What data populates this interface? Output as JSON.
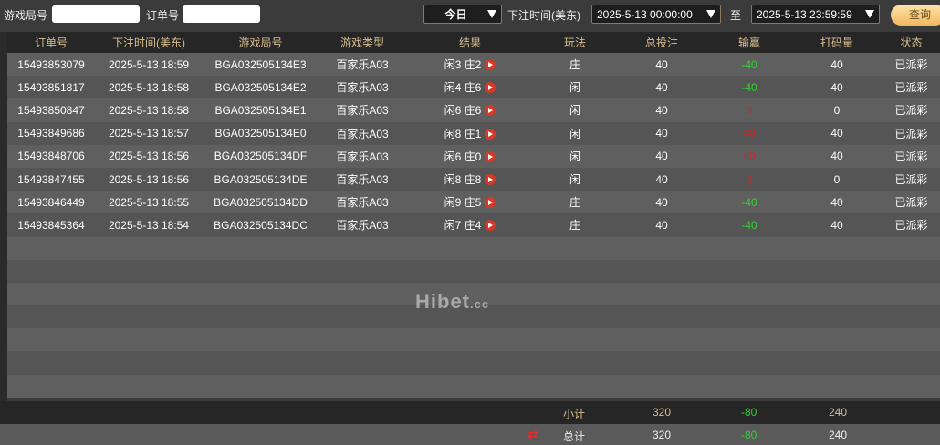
{
  "filters": {
    "game_round_label": "游戏局号",
    "game_round_value": "",
    "order_label": "订单号",
    "order_value": "",
    "period": "今日",
    "time_label": "下注时间(美东)",
    "start": "2025-5-13 00:00:00",
    "to_label": "至",
    "end": "2025-5-13 23:59:59",
    "query": "查询"
  },
  "columns": [
    "订单号",
    "下注时间(美东)",
    "游戏局号",
    "游戏类型",
    "结果",
    "玩法",
    "总投注",
    "输赢",
    "打码量",
    "状态"
  ],
  "rows": [
    {
      "order": "15493853079",
      "time": "2025-5-13 18:59",
      "round": "BGA032505134E3",
      "type": "百家乐A03",
      "result": "闲3 庄2",
      "play": "庄",
      "bet": "40",
      "win": "-40",
      "valid": "40",
      "status": "已派彩"
    },
    {
      "order": "15493851817",
      "time": "2025-5-13 18:58",
      "round": "BGA032505134E2",
      "type": "百家乐A03",
      "result": "闲4 庄6",
      "play": "闲",
      "bet": "40",
      "win": "-40",
      "valid": "40",
      "status": "已派彩"
    },
    {
      "order": "15493850847",
      "time": "2025-5-13 18:58",
      "round": "BGA032505134E1",
      "type": "百家乐A03",
      "result": "闲6 庄6",
      "play": "闲",
      "bet": "40",
      "win": "0",
      "valid": "0",
      "status": "已派彩"
    },
    {
      "order": "15493849686",
      "time": "2025-5-13 18:57",
      "round": "BGA032505134E0",
      "type": "百家乐A03",
      "result": "闲8 庄1",
      "play": "闲",
      "bet": "40",
      "win": "40",
      "valid": "40",
      "status": "已派彩"
    },
    {
      "order": "15493848706",
      "time": "2025-5-13 18:56",
      "round": "BGA032505134DF",
      "type": "百家乐A03",
      "result": "闲6 庄0",
      "play": "闲",
      "bet": "40",
      "win": "40",
      "valid": "40",
      "status": "已派彩"
    },
    {
      "order": "15493847455",
      "time": "2025-5-13 18:56",
      "round": "BGA032505134DE",
      "type": "百家乐A03",
      "result": "闲8 庄8",
      "play": "闲",
      "bet": "40",
      "win": "0",
      "valid": "0",
      "status": "已派彩"
    },
    {
      "order": "15493846449",
      "time": "2025-5-13 18:55",
      "round": "BGA032505134DD",
      "type": "百家乐A03",
      "result": "闲9 庄5",
      "play": "庄",
      "bet": "40",
      "win": "-40",
      "valid": "40",
      "status": "已派彩"
    },
    {
      "order": "15493845364",
      "time": "2025-5-13 18:54",
      "round": "BGA032505134DC",
      "type": "百家乐A03",
      "result": "闲7 庄4",
      "play": "庄",
      "bet": "40",
      "win": "-40",
      "valid": "40",
      "status": "已派彩"
    }
  ],
  "subtotal": {
    "label": "小计",
    "bet": "320",
    "win": "-80",
    "valid": "240"
  },
  "total": {
    "label": "总计",
    "bet": "320",
    "win": "-80",
    "valid": "240"
  },
  "watermark": "Hibet 海博 .cc",
  "colors": {
    "accent": "#d9bf8f",
    "negative": "#35d035",
    "positive": "#c62a2a"
  }
}
